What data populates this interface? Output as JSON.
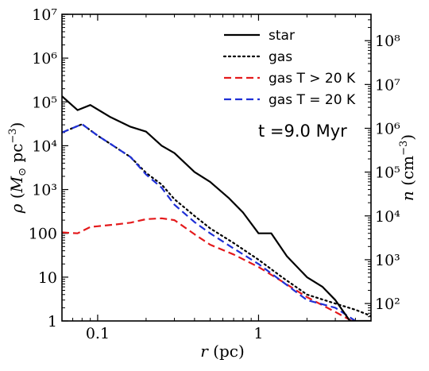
{
  "chart_data": {
    "type": "line",
    "xlabel": "r (pc)",
    "ylabel": "ρ (M⊙ pc⁻³)",
    "ylabel_right": "n (cm⁻³)",
    "x_scale": "log",
    "y_scale": "log",
    "xlim": [
      0.06,
      5.0
    ],
    "ylim": [
      1,
      10000000
    ],
    "right_ylim": [
      40,
      400000000
    ],
    "x_ticks": [
      {
        "value": 0.1,
        "label": "0.1"
      },
      {
        "value": 1,
        "label": "1"
      }
    ],
    "y_ticks": [
      {
        "value": 1,
        "label": "1"
      },
      {
        "value": 10,
        "label": "10"
      },
      {
        "value": 100,
        "label": "100"
      },
      {
        "value": 1000,
        "label": "10³"
      },
      {
        "value": 10000,
        "label": "10⁴"
      },
      {
        "value": 100000,
        "label": "10⁵"
      },
      {
        "value": 1000000,
        "label": "10⁶"
      },
      {
        "value": 10000000,
        "label": "10⁷"
      }
    ],
    "right_ticks": [
      {
        "value": 100,
        "label": "10²"
      },
      {
        "value": 1000,
        "label": "10³"
      },
      {
        "value": 10000,
        "label": "10⁴"
      },
      {
        "value": 100000,
        "label": "10⁵"
      },
      {
        "value": 1000000,
        "label": "10⁶"
      },
      {
        "value": 10000000,
        "label": "10⁷"
      },
      {
        "value": 100000000,
        "label": "10⁸"
      }
    ],
    "annotation": "t =9.0 Myr",
    "legend_position": "top-right",
    "series": [
      {
        "name": "star",
        "color": "#000000",
        "style": "solid",
        "x": [
          0.06,
          0.075,
          0.09,
          0.12,
          0.16,
          0.2,
          0.25,
          0.3,
          0.4,
          0.5,
          0.65,
          0.8,
          1.0,
          1.2,
          1.5,
          2.0,
          2.5,
          3.0,
          3.7,
          4.0,
          5.0
        ],
        "y": [
          135000,
          65000,
          85000,
          45000,
          27000,
          21000,
          10000,
          6800,
          2500,
          1500,
          650,
          300,
          100,
          100,
          30,
          10,
          6,
          3,
          1,
          1,
          1
        ]
      },
      {
        "name": "gas",
        "color": "#000000",
        "style": "dotted",
        "x": [
          0.06,
          0.08,
          0.1,
          0.12,
          0.16,
          0.2,
          0.25,
          0.3,
          0.4,
          0.5,
          0.7,
          1.0,
          1.4,
          2.0,
          3.0,
          4.0,
          5.0
        ],
        "y": [
          20000,
          31000,
          17000,
          11000,
          5500,
          2400,
          1300,
          600,
          250,
          130,
          60,
          25,
          10,
          4,
          2.5,
          1.8,
          1.3
        ]
      },
      {
        "name": "gas T > 20 K",
        "color": "#e41a1c",
        "style": "dashed",
        "x": [
          0.06,
          0.075,
          0.09,
          0.1,
          0.13,
          0.16,
          0.2,
          0.25,
          0.3,
          0.4,
          0.5,
          0.7,
          1.0,
          1.4,
          2.0,
          3.0,
          3.8
        ],
        "y": [
          105,
          100,
          140,
          145,
          160,
          175,
          210,
          220,
          200,
          95,
          55,
          33,
          17,
          8,
          3.5,
          1.6,
          1.0
        ]
      },
      {
        "name": "gas T = 20 K",
        "color": "#1f30d6",
        "style": "dashed",
        "x": [
          0.06,
          0.08,
          0.1,
          0.12,
          0.16,
          0.2,
          0.25,
          0.3,
          0.4,
          0.5,
          0.7,
          1.0,
          1.4,
          2.0,
          3.0,
          4.0
        ],
        "y": [
          20000,
          31000,
          17000,
          11000,
          5500,
          2200,
          1100,
          450,
          180,
          100,
          45,
          20,
          8,
          3,
          2,
          1
        ]
      }
    ]
  }
}
